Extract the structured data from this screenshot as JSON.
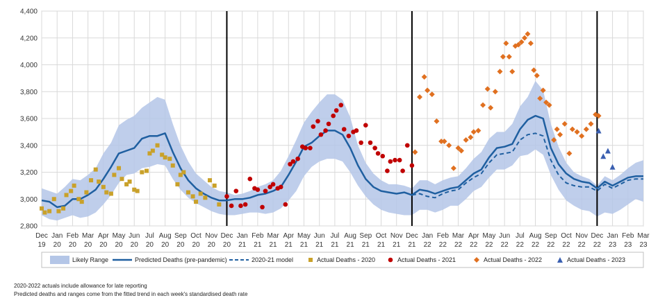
{
  "chart_data": {
    "type": "line",
    "title": "",
    "xlabel": "",
    "ylabel": "",
    "ylim": [
      2800,
      4400
    ],
    "yticks": [
      "2,800",
      "3,000",
      "3,200",
      "3,400",
      "3,600",
      "3,800",
      "4,000",
      "4,200",
      "4,400"
    ],
    "xticks": [
      [
        "Dec",
        "19"
      ],
      [
        "Jan",
        "20"
      ],
      [
        "Feb",
        "20"
      ],
      [
        "Mar",
        "20"
      ],
      [
        "Apr",
        "20"
      ],
      [
        "May",
        "20"
      ],
      [
        "Jun",
        "20"
      ],
      [
        "Jul",
        "20"
      ],
      [
        "Aug",
        "20"
      ],
      [
        "Sep",
        "20"
      ],
      [
        "Oct",
        "20"
      ],
      [
        "Nov",
        "20"
      ],
      [
        "Dec",
        "20"
      ],
      [
        "Jan",
        "21"
      ],
      [
        "Feb",
        "21"
      ],
      [
        "Mar",
        "21"
      ],
      [
        "Apr",
        "21"
      ],
      [
        "May",
        "21"
      ],
      [
        "Jun",
        "21"
      ],
      [
        "Jul",
        "21"
      ],
      [
        "Aug",
        "21"
      ],
      [
        "Sep",
        "21"
      ],
      [
        "Oct",
        "21"
      ],
      [
        "Nov",
        "21"
      ],
      [
        "Dec",
        "21"
      ],
      [
        "Jan",
        "22"
      ],
      [
        "Feb",
        "22"
      ],
      [
        "Mar",
        "22"
      ],
      [
        "Apr",
        "22"
      ],
      [
        "May",
        "22"
      ],
      [
        "Jun",
        "22"
      ],
      [
        "Jul",
        "22"
      ],
      [
        "Aug",
        "22"
      ],
      [
        "Sep",
        "22"
      ],
      [
        "Oct",
        "22"
      ],
      [
        "Nov",
        "22"
      ],
      [
        "Dec",
        "22"
      ],
      [
        "Jan",
        "23"
      ],
      [
        "Feb",
        "23"
      ],
      [
        "Mar",
        "23"
      ]
    ],
    "year_dividers": [
      "Dec 20",
      "Dec 21",
      "Dec 22"
    ],
    "grid": true,
    "legend_position": "bottom",
    "series": [
      {
        "name": "Likely Range",
        "kind": "band",
        "color": "#b4c6e7",
        "x": [
          0,
          0.5,
          1,
          1.5,
          2,
          2.5,
          3,
          3.5,
          4,
          4.5,
          5,
          5.5,
          6,
          6.5,
          7,
          7.5,
          8,
          8.5,
          9,
          9.5,
          10,
          10.5,
          11,
          11.5,
          12,
          12.5,
          13,
          13.5,
          14,
          14.5,
          15,
          15.5,
          16,
          16.5,
          17,
          17.5,
          18,
          18.5,
          19,
          19.5,
          20,
          20.5,
          21,
          21.5,
          22,
          22.5,
          23,
          23.5,
          24,
          24.5,
          25,
          25.5,
          26,
          26.5,
          27,
          27.5,
          28,
          28.5,
          29,
          29.5,
          30,
          30.5,
          31,
          31.5,
          32,
          32.5,
          33,
          33.5,
          34,
          34.5,
          35,
          35.5,
          36,
          36.5,
          37,
          37.5,
          38,
          38.5,
          39
        ],
        "low": [
          2880,
          2850,
          2840,
          2860,
          2880,
          2860,
          2870,
          2900,
          2960,
          3030,
          3120,
          3180,
          3190,
          3230,
          3240,
          3260,
          3250,
          3150,
          3070,
          3010,
          2970,
          2940,
          2910,
          2890,
          2880,
          2880,
          2890,
          2900,
          2900,
          2890,
          2900,
          2930,
          2990,
          3060,
          3170,
          3240,
          3280,
          3300,
          3300,
          3280,
          3200,
          3100,
          3020,
          2960,
          2920,
          2900,
          2890,
          2880,
          2880,
          2920,
          2920,
          2900,
          2920,
          2950,
          2950,
          3000,
          3060,
          3090,
          3160,
          3220,
          3220,
          3250,
          3320,
          3330,
          3370,
          3330,
          3180,
          3070,
          2990,
          2950,
          2920,
          2910,
          2870,
          2900,
          2890,
          2920,
          2960,
          3000,
          2980
        ],
        "high": [
          3080,
          3060,
          3040,
          3090,
          3150,
          3140,
          3180,
          3230,
          3340,
          3420,
          3550,
          3590,
          3620,
          3680,
          3720,
          3760,
          3740,
          3560,
          3400,
          3280,
          3190,
          3140,
          3090,
          3060,
          3050,
          3030,
          3040,
          3060,
          3090,
          3110,
          3140,
          3210,
          3320,
          3440,
          3570,
          3650,
          3720,
          3780,
          3780,
          3740,
          3610,
          3400,
          3270,
          3190,
          3140,
          3110,
          3110,
          3100,
          3080,
          3140,
          3140,
          3110,
          3140,
          3160,
          3170,
          3230,
          3300,
          3350,
          3450,
          3500,
          3500,
          3560,
          3690,
          3760,
          3880,
          3810,
          3560,
          3390,
          3270,
          3200,
          3170,
          3150,
          3100,
          3170,
          3140,
          3180,
          3230,
          3270,
          3290
        ]
      },
      {
        "name": "Predicted Deaths (pre-pandemic)",
        "kind": "line",
        "color": "#1f5fa0",
        "x": [
          0,
          0.5,
          1,
          1.5,
          2,
          2.5,
          3,
          3.5,
          4,
          4.5,
          5,
          5.5,
          6,
          6.5,
          7,
          7.5,
          8,
          8.5,
          9,
          9.5,
          10,
          10.5,
          11,
          11.5,
          12,
          12.5,
          13,
          13.5,
          14,
          14.5,
          15,
          15.5,
          16,
          16.5,
          17,
          17.5,
          18,
          18.5,
          19,
          19.5,
          20,
          20.5,
          21,
          21.5,
          22,
          22.5,
          23,
          23.5,
          24,
          24.5,
          25,
          25.5,
          26,
          26.5,
          27,
          27.5,
          28,
          28.5,
          29,
          29.5,
          30,
          30.5,
          31,
          31.5,
          32,
          32.5,
          33,
          33.5,
          34,
          34.5,
          35,
          35.5,
          36,
          36.5,
          37,
          37.5,
          38,
          38.5,
          39
        ],
        "values": [
          2990,
          2980,
          2940,
          2950,
          3000,
          3000,
          3030,
          3070,
          3150,
          3240,
          3340,
          3360,
          3380,
          3450,
          3470,
          3470,
          3490,
          3350,
          3230,
          3140,
          3080,
          3040,
          3010,
          2990,
          2990,
          3000,
          3000,
          3010,
          3030,
          3040,
          3060,
          3090,
          3180,
          3280,
          3390,
          3420,
          3470,
          3510,
          3510,
          3480,
          3380,
          3250,
          3150,
          3090,
          3060,
          3050,
          3040,
          3050,
          3030,
          3070,
          3060,
          3040,
          3060,
          3080,
          3090,
          3140,
          3190,
          3220,
          3310,
          3380,
          3390,
          3410,
          3520,
          3590,
          3620,
          3600,
          3380,
          3260,
          3190,
          3150,
          3130,
          3120,
          3080,
          3130,
          3100,
          3130,
          3160,
          3170,
          3170
        ]
      },
      {
        "name": "2020-21 model",
        "kind": "dashed-line",
        "color": "#1f5fa0",
        "x": [
          24,
          24.5,
          25,
          25.5,
          26,
          26.5,
          27,
          27.5,
          28,
          28.5,
          29,
          29.5,
          30,
          30.5,
          31,
          31.5,
          32,
          32.5,
          33,
          33.5,
          34,
          34.5,
          35,
          35.5,
          36,
          36.5,
          37,
          37.5,
          38,
          38.5,
          39
        ],
        "values": [
          3030,
          3040,
          3020,
          3010,
          3040,
          3060,
          3070,
          3120,
          3160,
          3190,
          3270,
          3330,
          3340,
          3350,
          3440,
          3480,
          3490,
          3470,
          3290,
          3180,
          3120,
          3100,
          3090,
          3090,
          3060,
          3110,
          3080,
          3110,
          3140,
          3150,
          3150
        ]
      },
      {
        "name": "Actual Deaths - 2020",
        "kind": "scatter",
        "marker": "square",
        "color": "#c9a12a",
        "x": [
          0,
          0.2,
          0.5,
          0.8,
          1.1,
          1.4,
          1.6,
          1.9,
          2.1,
          2.4,
          2.6,
          2.9,
          3.2,
          3.5,
          3.7,
          4.0,
          4.2,
          4.5,
          4.7,
          5.0,
          5.2,
          5.5,
          5.7,
          6.0,
          6.2,
          6.5,
          6.8,
          7.0,
          7.2,
          7.5,
          7.8,
          8.0,
          8.3,
          8.5,
          8.8,
          9.0,
          9.2,
          9.5,
          9.8,
          10.0,
          10.3,
          10.6,
          10.9,
          11.2,
          11.5
        ],
        "values": [
          2930,
          2900,
          2910,
          3000,
          2910,
          2930,
          3030,
          3060,
          3100,
          3000,
          2980,
          3050,
          3140,
          3220,
          3130,
          3090,
          3050,
          3040,
          3180,
          3230,
          3150,
          3110,
          3130,
          3070,
          3060,
          3200,
          3210,
          3340,
          3360,
          3400,
          3330,
          3310,
          3300,
          3250,
          3110,
          3180,
          3200,
          3050,
          3020,
          2980,
          3040,
          3010,
          3140,
          3100,
          2960
        ]
      },
      {
        "name": "Actual Deaths - 2021",
        "kind": "scatter",
        "marker": "circle",
        "color": "#c00000",
        "x": [
          12,
          12.3,
          12.6,
          12.9,
          13.2,
          13.5,
          13.8,
          14.0,
          14.3,
          14.5,
          14.8,
          15.0,
          15.3,
          15.5,
          15.8,
          16.1,
          16.3,
          16.6,
          16.9,
          17.1,
          17.4,
          17.6,
          17.9,
          18.1,
          18.4,
          18.6,
          18.9,
          19.1,
          19.4,
          19.6,
          19.9,
          20.2,
          20.4,
          20.7,
          21.0,
          21.3,
          21.6,
          21.8,
          22.1,
          22.4,
          22.6,
          22.9,
          23.2,
          23.4,
          23.7,
          24.0
        ],
        "values": [
          3020,
          2950,
          3060,
          2950,
          2960,
          3150,
          3080,
          3070,
          2940,
          3060,
          3090,
          3110,
          3080,
          3090,
          2960,
          3260,
          3280,
          3300,
          3390,
          3380,
          3380,
          3540,
          3580,
          3480,
          3510,
          3560,
          3620,
          3660,
          3700,
          3520,
          3470,
          3500,
          3510,
          3420,
          3550,
          3420,
          3380,
          3340,
          3320,
          3210,
          3280,
          3290,
          3290,
          3210,
          3400,
          3250
        ]
      },
      {
        "name": "Actual Deaths - 2022",
        "kind": "scatter",
        "marker": "diamond",
        "color": "#e07020",
        "x": [
          24.2,
          24.5,
          24.8,
          25.0,
          25.3,
          25.6,
          25.9,
          26.1,
          26.4,
          26.7,
          27.0,
          27.2,
          27.5,
          27.8,
          28.0,
          28.3,
          28.6,
          28.9,
          29.1,
          29.4,
          29.7,
          29.9,
          30.1,
          30.3,
          30.5,
          30.7,
          30.9,
          31.1,
          31.3,
          31.5,
          31.7,
          31.9,
          32.1,
          32.3,
          32.5,
          32.7,
          32.9,
          33.2,
          33.4,
          33.6,
          33.9,
          34.2,
          34.4,
          34.7,
          35.0,
          35.3,
          35.6,
          35.9,
          36.1
        ],
        "values": [
          3350,
          3760,
          3910,
          3810,
          3780,
          3580,
          3430,
          3430,
          3400,
          3230,
          3380,
          3360,
          3440,
          3460,
          3500,
          3510,
          3700,
          3820,
          3680,
          3800,
          3950,
          4060,
          4160,
          4060,
          3950,
          4140,
          4150,
          4170,
          4200,
          4230,
          4160,
          3960,
          3920,
          3750,
          3810,
          3720,
          3700,
          3440,
          3520,
          3480,
          3560,
          3340,
          3520,
          3500,
          3470,
          3520,
          3560,
          3630,
          3620
        ]
      },
      {
        "name": "Actual Deaths - 2023",
        "kind": "scatter",
        "marker": "triangle",
        "color": "#3a5fb0",
        "x": [
          36.1,
          36.4,
          36.7,
          37.0
        ],
        "values": [
          3510,
          3320,
          3360,
          3240
        ]
      }
    ]
  },
  "legend": {
    "band": "Likely Range",
    "predicted": "Predicted Deaths (pre-pandemic)",
    "model": "2020-21 model",
    "a2020": "Actual Deaths - 2020",
    "a2021": "Actual Deaths - 2021",
    "a2022": "Actual Deaths - 2022",
    "a2023": "Actual Deaths - 2023"
  },
  "footnotes": {
    "line1": "2020-2022  actuals include allowance for late reporting",
    "line2": "Predicted deaths and ranges come from the fitted trend in each week's standardised death rate"
  }
}
